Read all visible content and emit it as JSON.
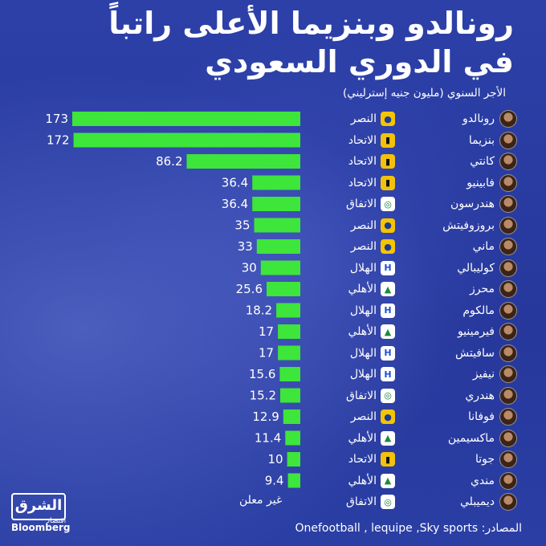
{
  "title_line1": "رونالدو وبنزيما الأعلى راتباً",
  "title_line2": "في الدوري السعودي",
  "subtitle": "الأجر السنوي (مليون جنيه إسترليني)",
  "sources": "المصادر: Onefootball , lequipe ,Sky sports",
  "logo": {
    "name": "الشرق",
    "sub": "اقتصاد",
    "partner": "Bloomberg"
  },
  "colors": {
    "background": "#2b3fa6",
    "bar": "#3ee53a",
    "text": "#ffffff",
    "club_nassr": "#f5c400",
    "club_ittihad": "#f2c20a",
    "club_ettifaq": "#ffffff",
    "club_hilal": "#1c4fd8",
    "club_ahli": "#1c8a3c"
  },
  "chart_data": {
    "type": "bar",
    "orientation": "horizontal",
    "title": "رونالدو وبنزيما الأعلى راتباً في الدوري السعودي",
    "subtitle": "الأجر السنوي (مليون جنيه إسترليني)",
    "categories": [
      "رونالدو",
      "بنزيما",
      "كانتي",
      "فابينيو",
      "هندرسون",
      "بروزوفيتش",
      "ماني",
      "كوليبالي",
      "محرز",
      "مالكوم",
      "فيرمينيو",
      "سافيتش",
      "نيفيز",
      "هندري",
      "فوفانا",
      "ماكسيمين",
      "جوتا",
      "مندي",
      "ديميبلي"
    ],
    "clubs": [
      "النصر",
      "الاتحاد",
      "الاتحاد",
      "الاتحاد",
      "الاتفاق",
      "النصر",
      "النصر",
      "الهلال",
      "الأهلي",
      "الهلال",
      "الأهلي",
      "الهلال",
      "الهلال",
      "الاتفاق",
      "النصر",
      "الأهلي",
      "الاتحاد",
      "الأهلي",
      "الاتفاق"
    ],
    "club_icons": [
      "nassr-crest-icon",
      "ittihad-crest-icon",
      "ittihad-crest-icon",
      "ittihad-crest-icon",
      "ettifaq-crest-icon",
      "nassr-crest-icon",
      "nassr-crest-icon",
      "hilal-crest-icon",
      "ahli-crest-icon",
      "hilal-crest-icon",
      "ahli-crest-icon",
      "hilal-crest-icon",
      "hilal-crest-icon",
      "ettifaq-crest-icon",
      "nassr-crest-icon",
      "ahli-crest-icon",
      "ittihad-crest-icon",
      "ahli-crest-icon",
      "ettifaq-crest-icon"
    ],
    "values": [
      173,
      172,
      86.2,
      36.4,
      36.4,
      35,
      33,
      30,
      25.6,
      18.2,
      17,
      17,
      15.6,
      15.2,
      12.9,
      11.4,
      10,
      9.4,
      null
    ],
    "value_labels": [
      "173",
      "172",
      "86.2",
      "36.4",
      "36.4",
      "35",
      "33",
      "30",
      "25.6",
      "18.2",
      "17",
      "17",
      "15.6",
      "15.2",
      "12.9",
      "11.4",
      "10",
      "9.4",
      "غير معلن"
    ],
    "undisclosed_label": "غير معلن",
    "xlim": [
      0,
      173
    ],
    "grid": false,
    "legend": "none"
  }
}
